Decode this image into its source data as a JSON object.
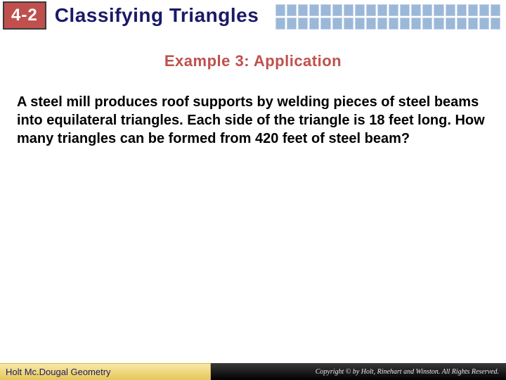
{
  "header": {
    "chapter": "4-2",
    "title": "Classifying Triangles",
    "grid": {
      "cell_bg": "#9bb8d9",
      "cell_border": "#c5d5e8",
      "cols": 20,
      "rows": 2
    }
  },
  "subtitle": {
    "text": "Example 3: Application",
    "color": "#c0504d"
  },
  "body": {
    "text": "A steel mill produces roof supports by welding pieces of steel beams into equilateral triangles. Each side of the triangle is 18 feet long. How many triangles can be formed from 420 feet of steel beam?"
  },
  "footer": {
    "left": "Holt Mc.Dougal Geometry",
    "right": "Copyright © by Holt, Rinehart and Winston. All Rights Reserved."
  },
  "colors": {
    "title_text": "#1a1a66",
    "chapter_bg": "#c0504d",
    "chapter_fg": "#ffffff",
    "footer_left_bg_top": "#f8e9a8",
    "footer_left_bg_bottom": "#e6c659",
    "footer_right_bg": "#000000"
  }
}
